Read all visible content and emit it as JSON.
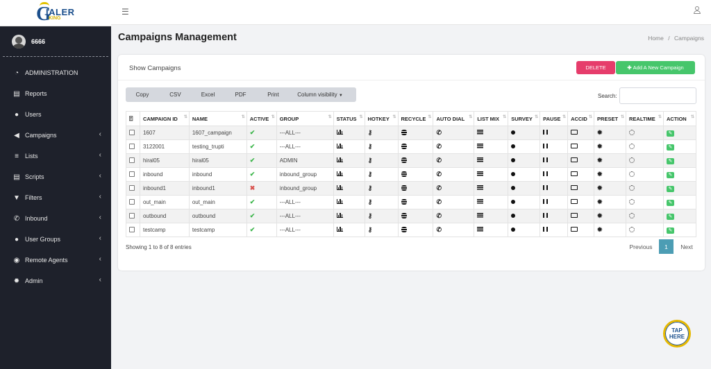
{
  "logo": {
    "mark": "G",
    "text_top": "IALER",
    "text_bottom": "KING"
  },
  "user": {
    "name": "6666"
  },
  "sidebar": {
    "items": [
      {
        "label": "ADMINISTRATION",
        "icon": "dashboard-icon",
        "chevron": false
      },
      {
        "label": "Reports",
        "icon": "file-icon",
        "chevron": false
      },
      {
        "label": "Users",
        "icon": "user-icon",
        "chevron": false
      },
      {
        "label": "Campaigns",
        "icon": "bullhorn-icon",
        "chevron": true
      },
      {
        "label": "Lists",
        "icon": "list-icon",
        "chevron": true
      },
      {
        "label": "Scripts",
        "icon": "file-icon",
        "chevron": true
      },
      {
        "label": "Filters",
        "icon": "filter-icon",
        "chevron": true
      },
      {
        "label": "Inbound",
        "icon": "phone-icon",
        "chevron": true
      },
      {
        "label": "User Groups",
        "icon": "users-icon",
        "chevron": true
      },
      {
        "label": "Remote Agents",
        "icon": "agent-icon",
        "chevron": true
      },
      {
        "label": "Admin",
        "icon": "gear-icon",
        "chevron": true
      }
    ]
  },
  "page": {
    "title": "Campaigns Management",
    "breadcrumb_home": "Home",
    "breadcrumb_sep": "/",
    "breadcrumb_current": "Campaigns"
  },
  "card": {
    "title": "Show Campaigns",
    "delete_label": "DELETE",
    "add_label": "Add A New Campaign",
    "exports": [
      "Copy",
      "CSV",
      "Excel",
      "PDF",
      "Print",
      "Column visibility"
    ],
    "search_label": "Search:",
    "search_value": ""
  },
  "table": {
    "columns": [
      "",
      "CAMPAIGN ID",
      "NAME",
      "ACTIVE",
      "GROUP",
      "STATUS",
      "HOTKEY",
      "RECYCLE",
      "AUTO DIAL",
      "LIST MIX",
      "SURVEY",
      "PAUSE",
      "ACCID",
      "PRESET",
      "REALTIME",
      "ACTION"
    ],
    "rows": [
      {
        "id": "1607",
        "name": "1607_campaign",
        "active": true,
        "group": "---ALL---"
      },
      {
        "id": "3122001",
        "name": "testing_trupti",
        "active": true,
        "group": "---ALL---"
      },
      {
        "id": "hiral05",
        "name": "hiral05",
        "active": true,
        "group": "ADMIN"
      },
      {
        "id": "inbound",
        "name": "inbound",
        "active": true,
        "group": "inbound_group"
      },
      {
        "id": "inbound1",
        "name": "inbound1",
        "active": false,
        "group": "inbound_group"
      },
      {
        "id": "out_main",
        "name": "out_main",
        "active": true,
        "group": "---ALL---"
      },
      {
        "id": "outbound",
        "name": "outbound",
        "active": true,
        "group": "---ALL---"
      },
      {
        "id": "testcamp",
        "name": "testcamp",
        "active": true,
        "group": "---ALL---"
      }
    ]
  },
  "footer": {
    "info": "Showing 1 to 8 of 8 entries",
    "prev": "Previous",
    "page": "1",
    "next": "Next"
  },
  "tap": {
    "line1": "TAP",
    "line2": "HERE"
  },
  "colors": {
    "sidebar": "#1e212b",
    "delete": "#e63c6b",
    "add": "#46c66b",
    "active_page": "#4c9db4"
  }
}
